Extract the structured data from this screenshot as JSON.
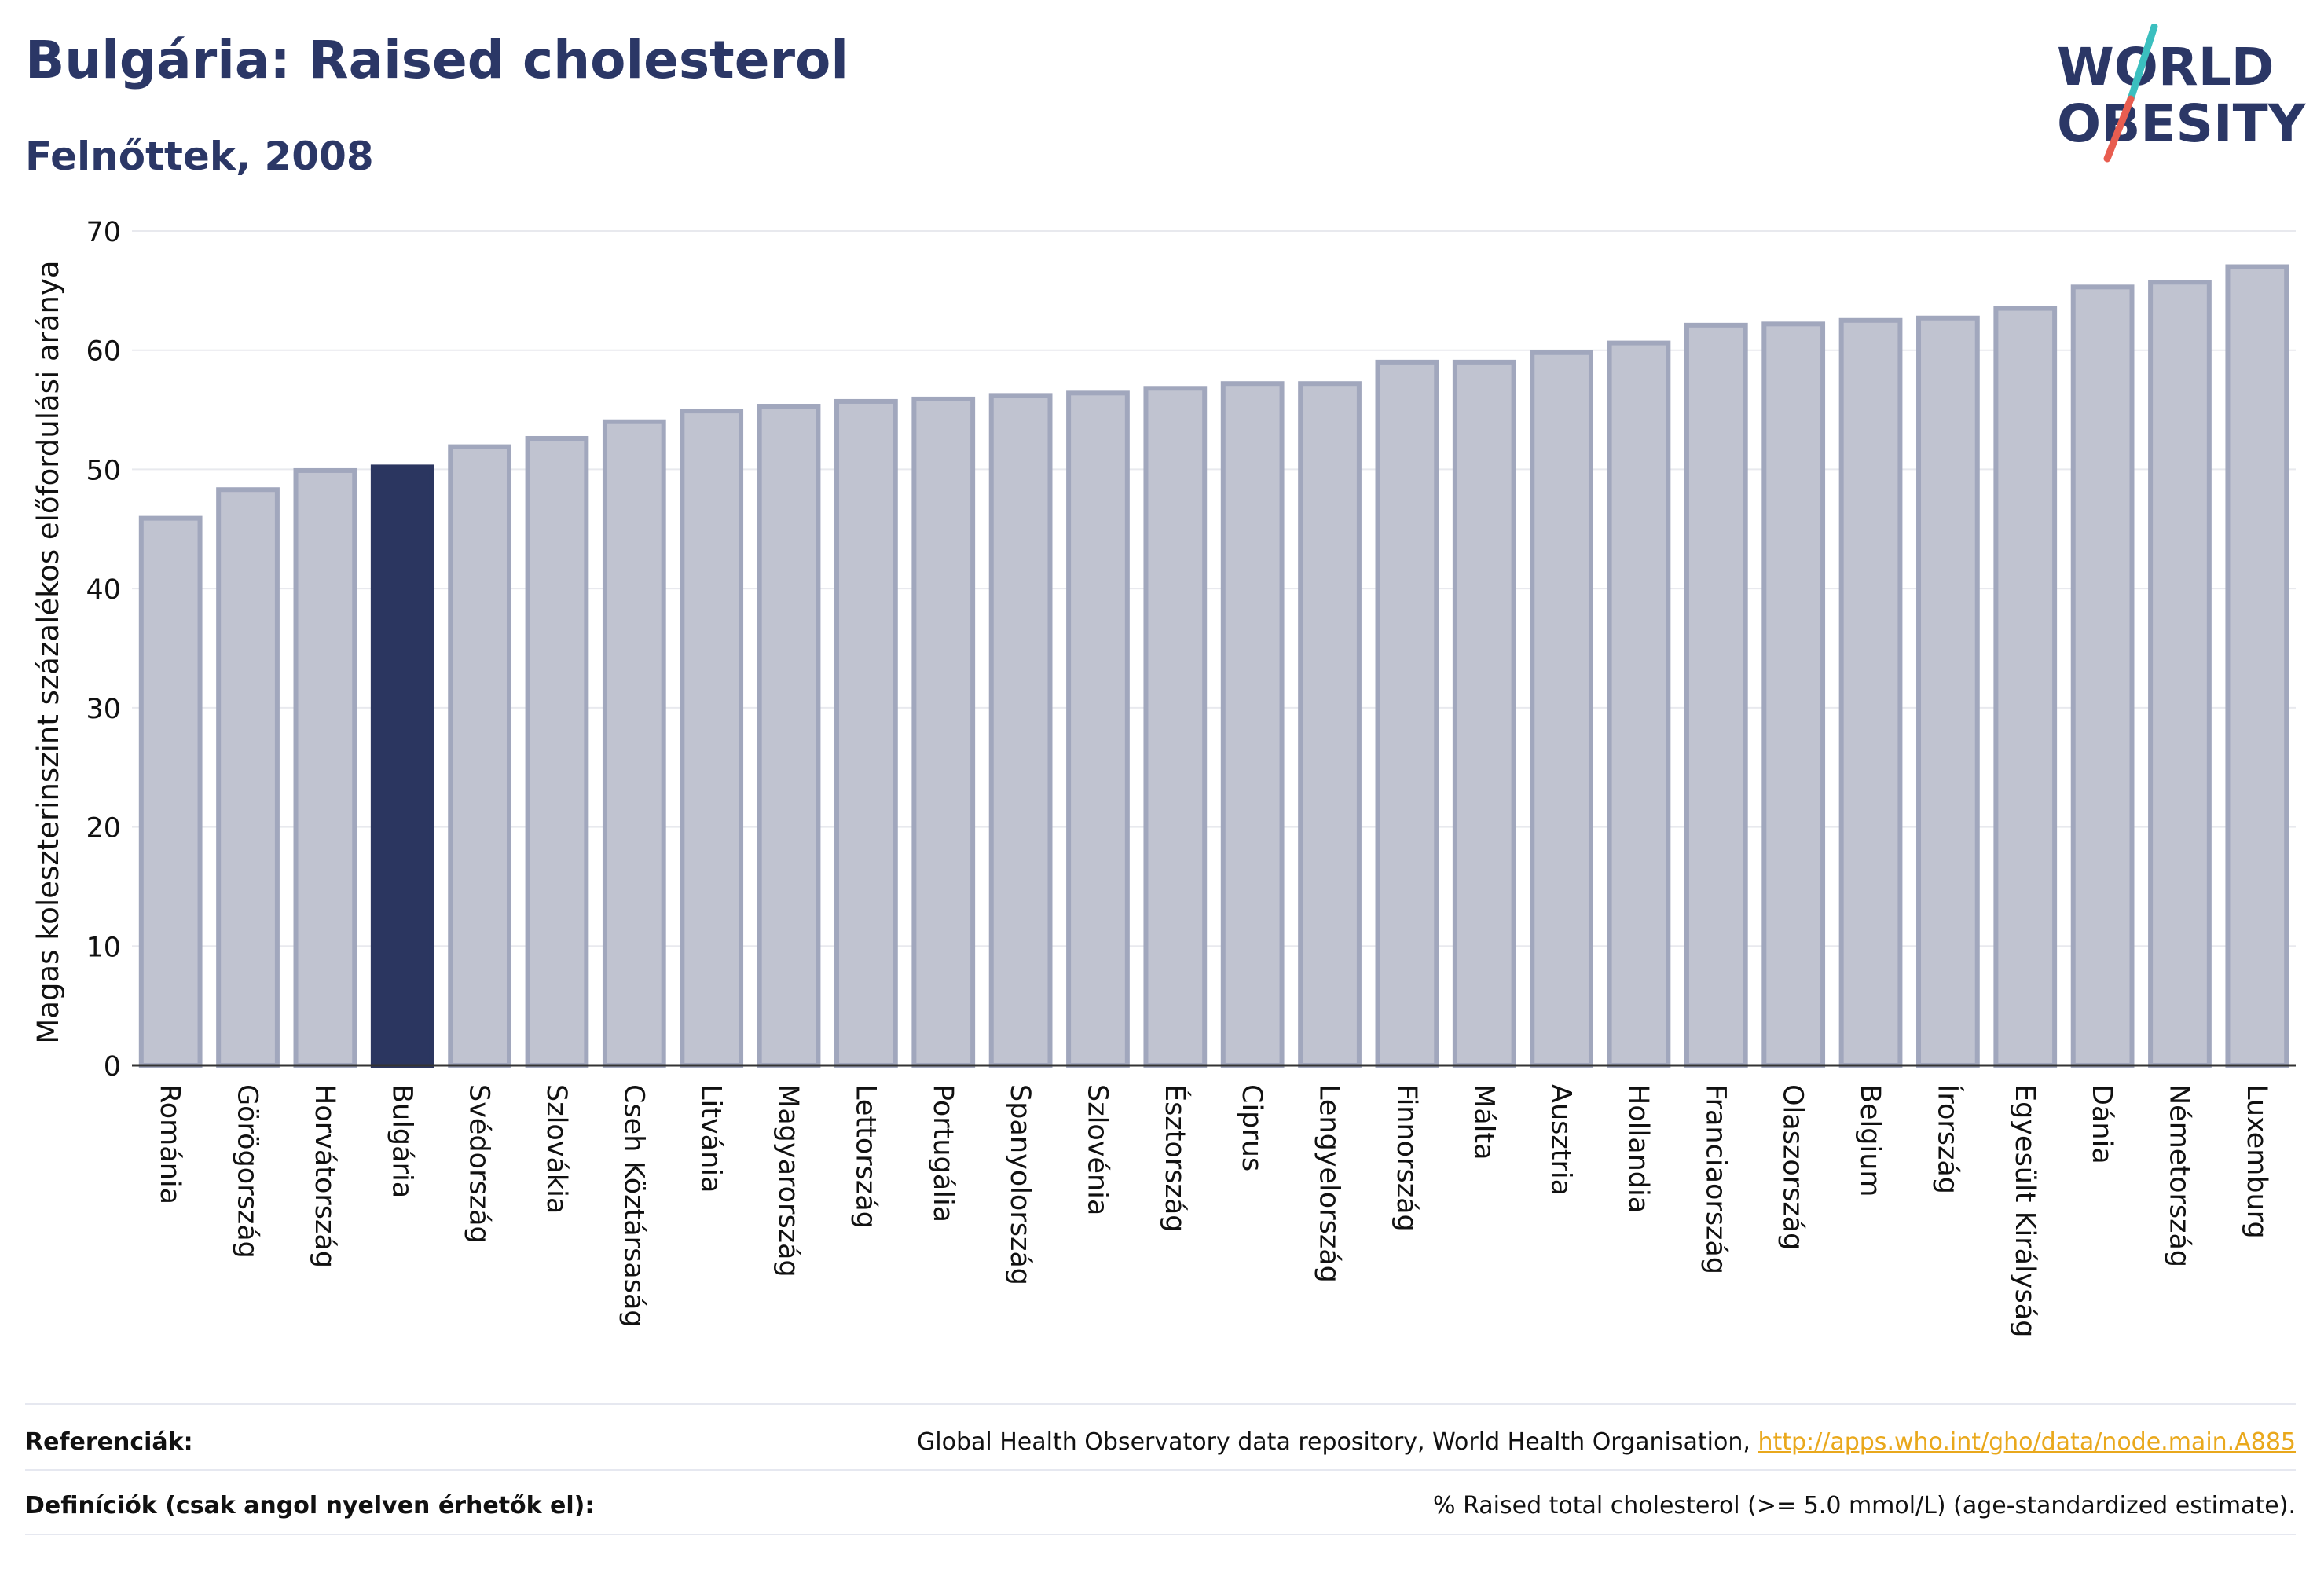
{
  "header": {
    "title": "Bulgária: Raised cholesterol",
    "subtitle": "Felnőttek, 2008"
  },
  "logo": {
    "line1": "WORLD",
    "line2": "OBESITY",
    "icon": "world-obesity-logo"
  },
  "colors": {
    "highlight": "#2b3660",
    "bar_fill": "#c0c3d0",
    "bar_edge": "#a1a7bd",
    "link": "#e9a81c",
    "logo_dark": "#2b3766",
    "logo_red": "#e85d50",
    "logo_teal": "#3bbfbf"
  },
  "chart_data": {
    "type": "bar",
    "ylabel": "Magas koleszterinszint százalékos előfordulási aránya",
    "xlabel": "",
    "ylim": [
      0,
      70
    ],
    "yticks": [
      0,
      10,
      20,
      30,
      40,
      50,
      60,
      70
    ],
    "grid": true,
    "highlight": "Bulgária",
    "categories": [
      "Románia",
      "Görögország",
      "Horvátország",
      "Bulgária",
      "Svédország",
      "Szlovákia",
      "Cseh Köztársaság",
      "Litvánia",
      "Magyarország",
      "Lettország",
      "Portugália",
      "Spanyolország",
      "Szlovénia",
      "Észtország",
      "Ciprus",
      "Lengyelország",
      "Finnország",
      "Málta",
      "Ausztria",
      "Hollandia",
      "Franciaország",
      "Olaszország",
      "Belgium",
      "Írország",
      "Egyesült Királyság",
      "Dánia",
      "Németország",
      "Luxemburg"
    ],
    "values": [
      45.9,
      48.3,
      49.9,
      50.2,
      51.9,
      52.6,
      54.0,
      54.9,
      55.3,
      55.7,
      55.9,
      56.2,
      56.4,
      56.8,
      57.2,
      57.2,
      59.0,
      59.0,
      59.8,
      60.6,
      62.1,
      62.2,
      62.5,
      62.7,
      63.5,
      65.3,
      65.7,
      67.0
    ]
  },
  "footer": {
    "references_label": "Referenciák:",
    "references_text": "Global Health Observatory data repository, World Health Organisation, ",
    "references_link": "http://apps.who.int/gho/data/node.main.A885",
    "definitions_label": "Definíciók (csak angol nyelven érhetők el):",
    "definitions_text": "% Raised total cholesterol (>= 5.0 mmol/L) (age-standardized estimate)."
  }
}
